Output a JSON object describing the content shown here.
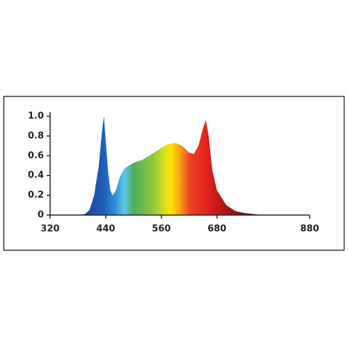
{
  "chart_data": {
    "type": "area",
    "x": [
      380,
      395,
      405,
      415,
      425,
      432,
      436,
      440,
      445,
      450,
      455,
      462,
      470,
      480,
      500,
      520,
      540,
      560,
      575,
      590,
      605,
      620,
      630,
      640,
      650,
      656,
      662,
      670,
      680,
      700,
      720,
      740,
      760,
      780
    ],
    "values": [
      0,
      0.01,
      0.05,
      0.2,
      0.5,
      0.85,
      1.0,
      0.75,
      0.45,
      0.25,
      0.2,
      0.25,
      0.38,
      0.47,
      0.53,
      0.56,
      0.62,
      0.68,
      0.72,
      0.73,
      0.7,
      0.63,
      0.62,
      0.7,
      0.88,
      0.96,
      0.8,
      0.45,
      0.25,
      0.1,
      0.04,
      0.02,
      0.01,
      0
    ],
    "xlim": [
      320,
      880
    ],
    "xticks": [
      320,
      440,
      560,
      680,
      880
    ],
    "ylim": [
      0,
      1
    ],
    "yticks": [
      0,
      0.2,
      0.4,
      0.6,
      0.8,
      {
        "value": 1,
        "label": "1.0"
      }
    ]
  }
}
